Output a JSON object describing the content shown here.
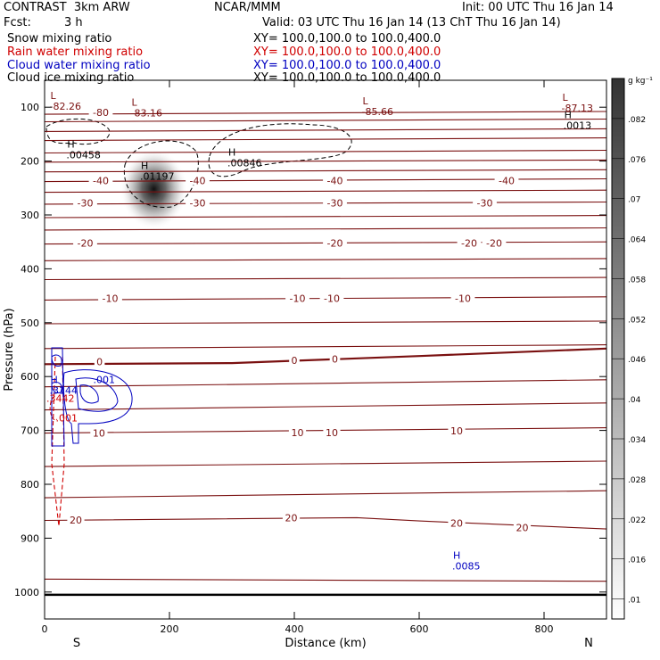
{
  "header": {
    "left_title": "CONTRAST  3km ARW",
    "center_title": "NCAR/MMM",
    "init": "Init: 00 UTC Thu 16 Jan 14",
    "fcst_label": "Fcst:",
    "fcst_value": "3 h",
    "valid": "Valid: 03 UTC Thu 16 Jan 14 (13 ChT Thu 16 Jan 14)"
  },
  "fields": [
    {
      "name": "Snow mixing ratio",
      "xy": "",
      "color": "#000000"
    },
    {
      "name": "Rain water mixing ratio",
      "xy": "XY= 100.0,100.0 to 100.0,400.0",
      "color": "#d00000"
    },
    {
      "name": "Cloud water mixing ratio",
      "xy": "XY= 100.0,100.0 to 100.0,400.0",
      "color": "#0000c0"
    },
    {
      "name": "Cloud ice mixing ratio",
      "xy": "XY= 100.0,100.0 to 100.0,400.0",
      "color": "#000000"
    }
  ],
  "snow_xy": "XY= 100.0,100.0 to 100.0,400.0",
  "colors": {
    "temperature": "#7a1010",
    "rain": "#d00000",
    "cloud_water": "#0000c0",
    "ice": "#000000"
  },
  "chart_data": {
    "type": "contour",
    "xlabel": "Distance (km)",
    "ylabel": "Pressure (hPa)",
    "xlim": [
      0,
      900
    ],
    "ylim": [
      1050,
      50
    ],
    "xticks": [
      0,
      200,
      400,
      600,
      800
    ],
    "yticks": [
      100,
      200,
      300,
      400,
      500,
      600,
      700,
      800,
      900,
      1000
    ],
    "x_end_labels": {
      "left": "S",
      "right": "N"
    },
    "colorbar": {
      "unit": "g kg⁻¹",
      "levels": [
        ".01",
        ".016",
        ".022",
        ".028",
        ".034",
        ".04",
        ".046",
        ".052",
        ".058",
        ".064",
        ".07",
        ".076",
        ".082"
      ]
    },
    "temperature_contours": [
      {
        "label": "-80",
        "p": 110,
        "curve": [
          [
            0,
            113
          ],
          [
            900,
            108
          ]
        ]
      },
      {
        "label": "",
        "p": 125,
        "curve": [
          [
            0,
            127
          ],
          [
            900,
            122
          ]
        ]
      },
      {
        "label": "",
        "p": 143,
        "curve": [
          [
            0,
            145
          ],
          [
            900,
            140
          ]
        ]
      },
      {
        "label": "",
        "p": 160,
        "curve": [
          [
            0,
            162
          ],
          [
            900,
            157
          ]
        ]
      },
      {
        "label": "",
        "p": 183,
        "curve": [
          [
            0,
            185
          ],
          [
            900,
            180
          ]
        ]
      },
      {
        "label": "",
        "p": 200,
        "curve": [
          [
            0,
            202
          ],
          [
            900,
            198
          ]
        ]
      },
      {
        "label": "",
        "p": 218,
        "curve": [
          [
            0,
            220
          ],
          [
            900,
            216
          ]
        ]
      },
      {
        "label": "-40",
        "p": 236,
        "curve": [
          [
            0,
            238
          ],
          [
            900,
            233
          ]
        ]
      },
      {
        "label": "",
        "p": 256,
        "curve": [
          [
            0,
            258
          ],
          [
            900,
            254
          ]
        ]
      },
      {
        "label": "-30",
        "p": 278,
        "curve": [
          [
            0,
            280
          ],
          [
            900,
            276
          ]
        ]
      },
      {
        "label": "",
        "p": 303,
        "curve": [
          [
            0,
            305
          ],
          [
            900,
            301
          ]
        ]
      },
      {
        "label": "",
        "p": 326,
        "curve": [
          [
            0,
            328
          ],
          [
            900,
            324
          ]
        ]
      },
      {
        "label": "-20",
        "p": 352,
        "curve": [
          [
            0,
            354
          ],
          [
            900,
            350
          ]
        ]
      },
      {
        "label": "",
        "p": 383,
        "curve": [
          [
            0,
            385
          ],
          [
            900,
            381
          ]
        ]
      },
      {
        "label": "",
        "p": 418,
        "curve": [
          [
            0,
            420
          ],
          [
            900,
            416
          ]
        ]
      },
      {
        "label": "-10",
        "p": 455,
        "curve": [
          [
            0,
            458
          ],
          [
            900,
            452
          ]
        ]
      },
      {
        "label": "",
        "p": 500,
        "curve": [
          [
            0,
            502
          ],
          [
            900,
            497
          ]
        ]
      },
      {
        "label": "",
        "p": 545,
        "curve": [
          [
            0,
            548
          ],
          [
            900,
            541
          ]
        ]
      },
      {
        "label": "0",
        "p": 575,
        "curve": [
          [
            0,
            577
          ],
          [
            300,
            575
          ],
          [
            600,
            562
          ],
          [
            900,
            548
          ]
        ],
        "bold": true
      },
      {
        "label": "",
        "p": 617,
        "curve": [
          [
            0,
            619
          ],
          [
            900,
            606
          ]
        ]
      },
      {
        "label": "",
        "p": 660,
        "curve": [
          [
            0,
            662
          ],
          [
            900,
            649
          ]
        ]
      },
      {
        "label": "10",
        "p": 705,
        "curve": [
          [
            0,
            705
          ],
          [
            900,
            695
          ]
        ]
      },
      {
        "label": "",
        "p": 765,
        "curve": [
          [
            0,
            767
          ],
          [
            900,
            757
          ]
        ]
      },
      {
        "label": "",
        "p": 823,
        "curve": [
          [
            0,
            825
          ],
          [
            900,
            812
          ]
        ]
      },
      {
        "label": "20",
        "p": 866,
        "curve": [
          [
            0,
            867
          ],
          [
            500,
            862
          ],
          [
            600,
            868
          ],
          [
            900,
            883
          ]
        ]
      },
      {
        "label": "",
        "p": 975,
        "curve": [
          [
            0,
            976
          ],
          [
            900,
            980
          ]
        ]
      }
    ],
    "temperature_labels": [
      {
        "text": "-80",
        "x": 90,
        "p": 110
      },
      {
        "text": "-40",
        "x": 90,
        "p": 236
      },
      {
        "text": "-40",
        "x": 245,
        "p": 236
      },
      {
        "text": "-40",
        "x": 465,
        "p": 236
      },
      {
        "text": "-40",
        "x": 740,
        "p": 236
      },
      {
        "text": "-30",
        "x": 65,
        "p": 278
      },
      {
        "text": "-30",
        "x": 245,
        "p": 278
      },
      {
        "text": "-30",
        "x": 465,
        "p": 278
      },
      {
        "text": "-30",
        "x": 705,
        "p": 278
      },
      {
        "text": "-20",
        "x": 65,
        "p": 352
      },
      {
        "text": "-20",
        "x": 465,
        "p": 352
      },
      {
        "text": "-20",
        "x": 680,
        "p": 352
      },
      {
        "text": "-20",
        "x": 720,
        "p": 352
      },
      {
        "text": "-10",
        "x": 105,
        "p": 455
      },
      {
        "text": "-10",
        "x": 405,
        "p": 455
      },
      {
        "text": "-10",
        "x": 460,
        "p": 455
      },
      {
        "text": "-10",
        "x": 670,
        "p": 455
      },
      {
        "text": "0",
        "x": 88,
        "p": 572
      },
      {
        "text": "0",
        "x": 400,
        "p": 570
      },
      {
        "text": "0",
        "x": 465,
        "p": 567
      },
      {
        "text": "10",
        "x": 87,
        "p": 705
      },
      {
        "text": "10",
        "x": 405,
        "p": 704
      },
      {
        "text": "10",
        "x": 460,
        "p": 704
      },
      {
        "text": "10",
        "x": 660,
        "p": 701
      },
      {
        "text": "20",
        "x": 50,
        "p": 866
      },
      {
        "text": "20",
        "x": 395,
        "p": 862
      },
      {
        "text": "20",
        "x": 660,
        "p": 872
      },
      {
        "text": "20",
        "x": 765,
        "p": 880
      }
    ],
    "extrema": [
      {
        "mark": "L",
        "value": "-82.26",
        "x": 5,
        "p": 85,
        "color": "#7a1010"
      },
      {
        "mark": "L",
        "value": "-83.16",
        "x": 135,
        "p": 97,
        "color": "#7a1010"
      },
      {
        "mark": "L",
        "value": "-85.66",
        "x": 505,
        "p": 95,
        "color": "#7a1010"
      },
      {
        "mark": "L",
        "value": "-87.13",
        "x": 825,
        "p": 88,
        "color": "#7a1010"
      },
      {
        "mark": "H",
        "value": ".0013",
        "x": 828,
        "p": 120,
        "color": "#000000"
      },
      {
        "mark": "H",
        "value": ".00458",
        "x": 32,
        "p": 175,
        "color": "#000000"
      },
      {
        "mark": "H",
        "value": ".01197",
        "x": 150,
        "p": 215,
        "color": "#000000"
      },
      {
        "mark": "H",
        "value": ".00846",
        "x": 290,
        "p": 190,
        "color": "#000000"
      },
      {
        "mark": "H",
        "value": ".0085",
        "x": 650,
        "p": 938,
        "color": "#0000c0"
      },
      {
        "mark": "H",
        "value": ".3144",
        "x": 5,
        "p": 612,
        "color": "#0000c0"
      },
      {
        "mark": "",
        "value": ".001",
        "x": 75,
        "p": 612,
        "color": "#0000c0"
      },
      {
        "mark": "",
        "value": ".3442",
        "x": 0,
        "p": 647,
        "color": "#d00000"
      },
      {
        "mark": "",
        "value": ".001",
        "x": 15,
        "p": 683,
        "color": "#d00000"
      }
    ],
    "snow_max": {
      "x": 175,
      "p": 252,
      "value": 0.082
    }
  }
}
